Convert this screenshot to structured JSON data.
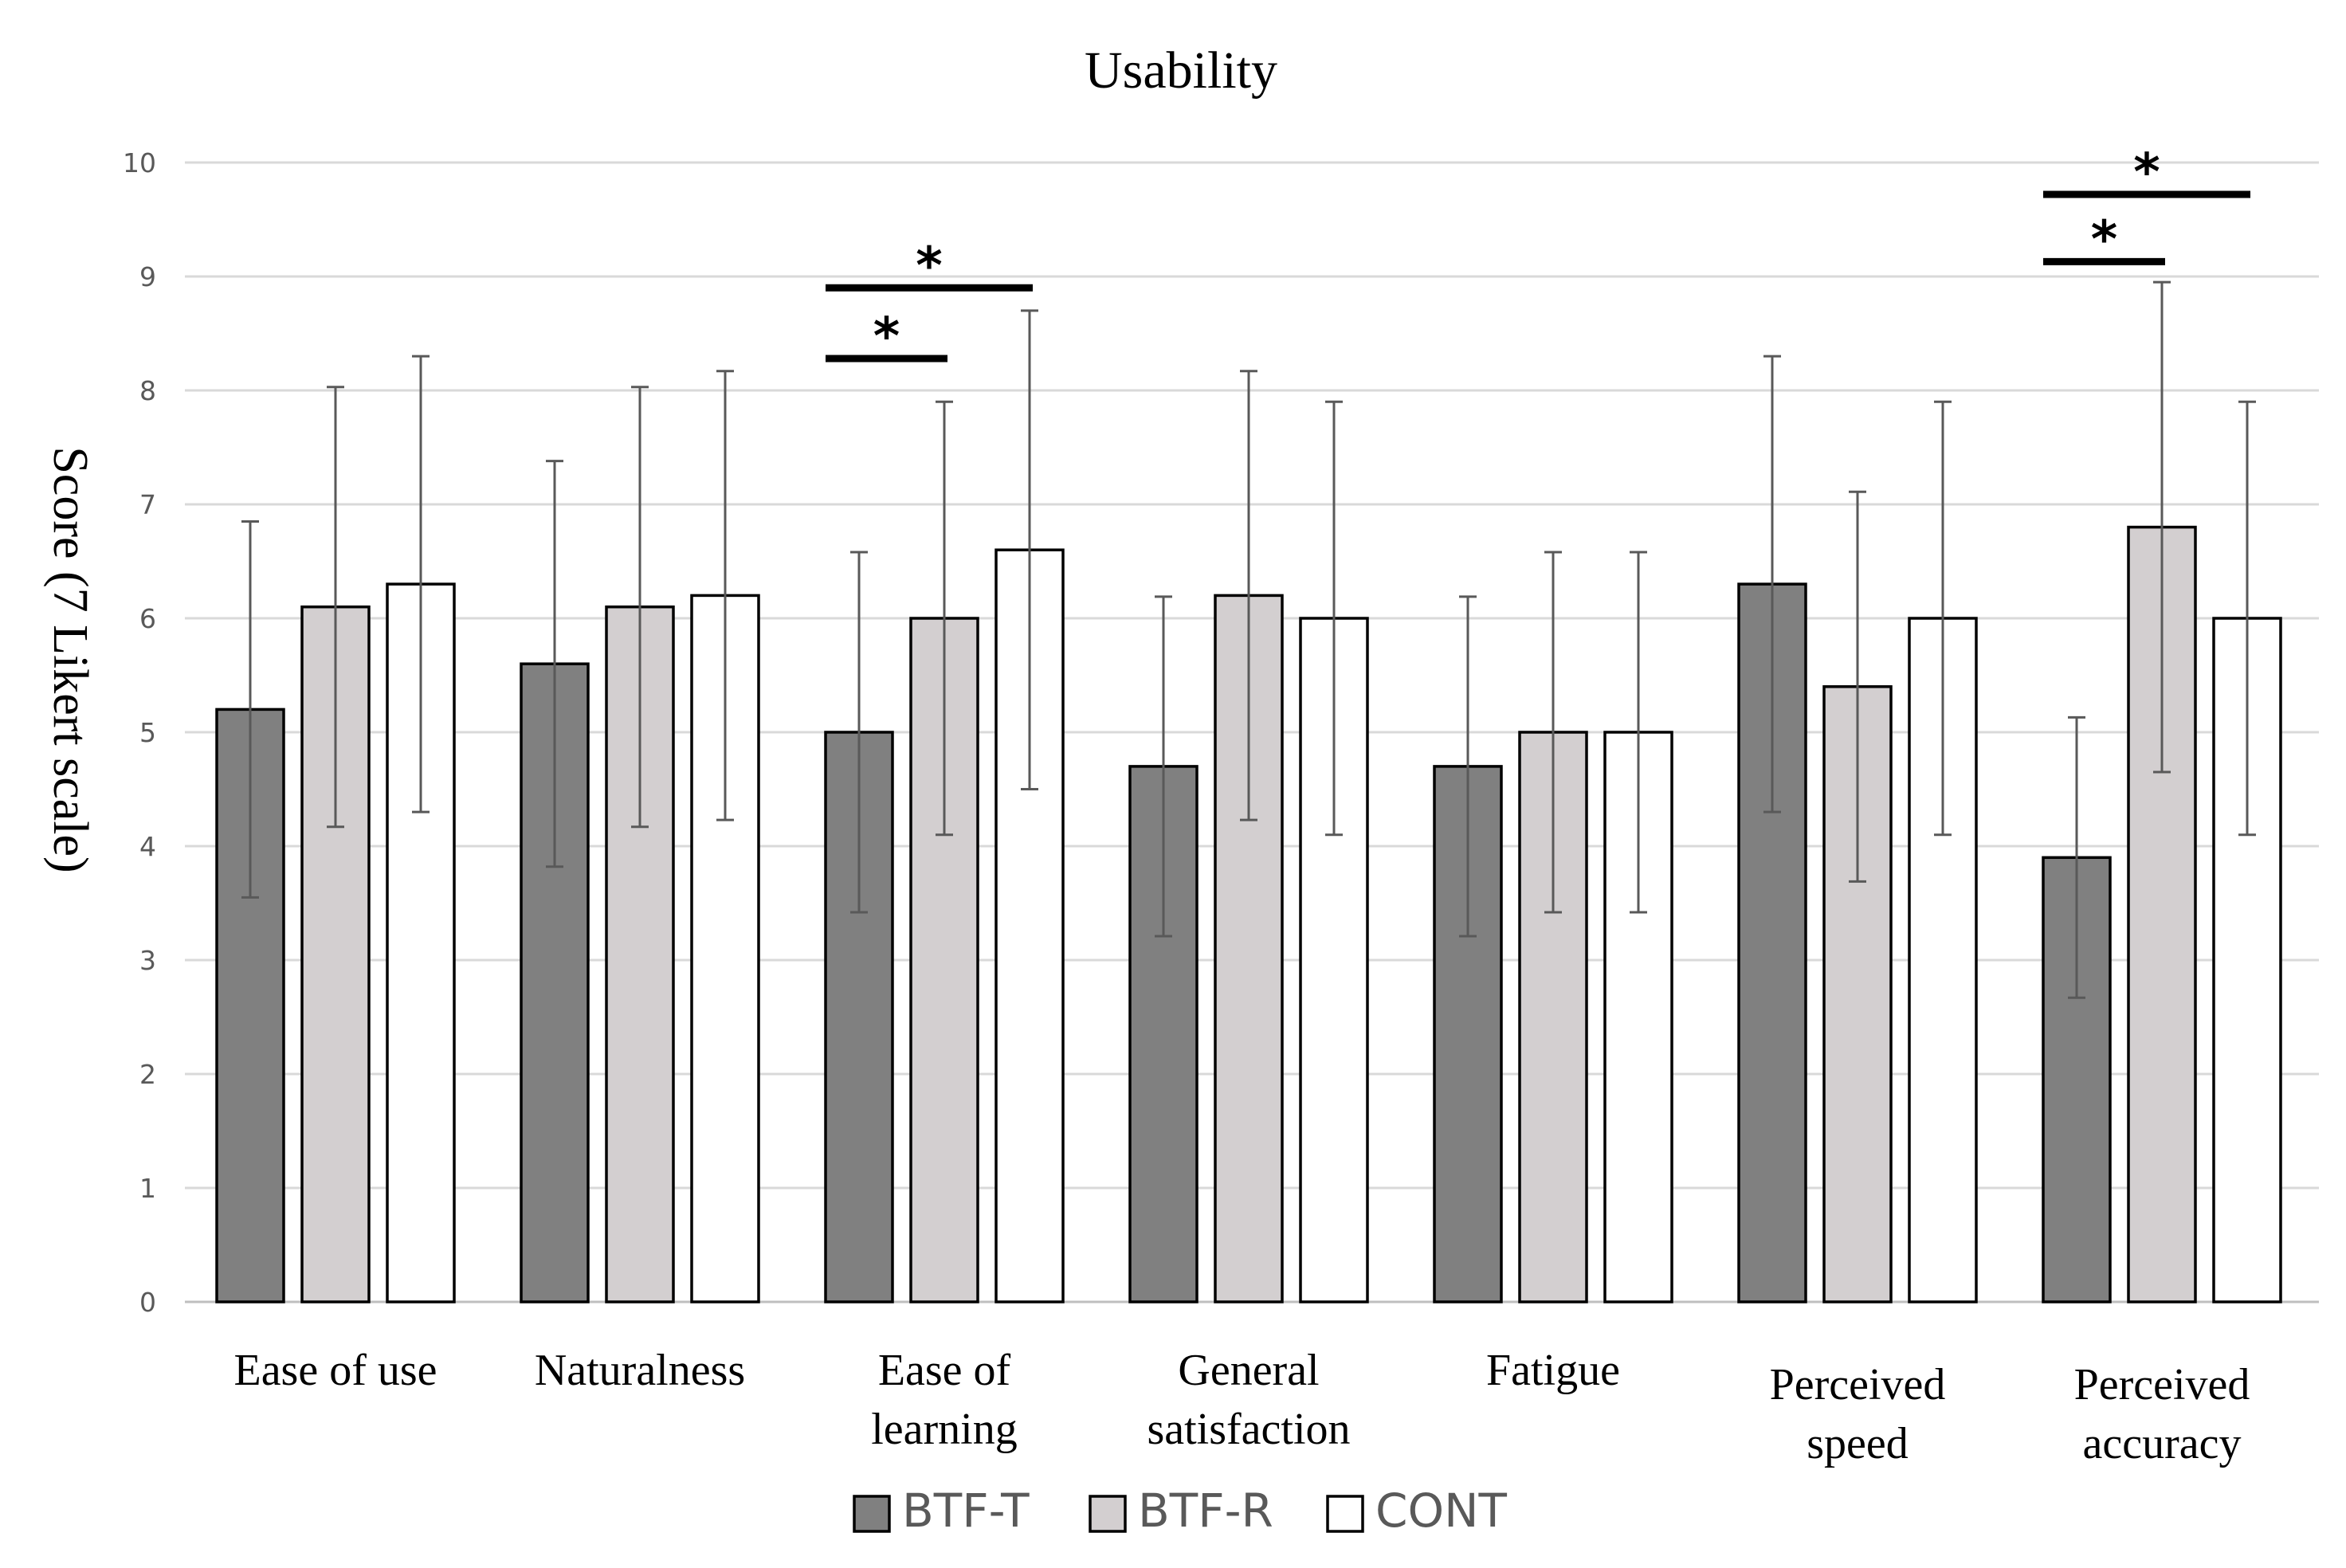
{
  "chart_data": {
    "type": "bar",
    "title": "Usability",
    "ylabel": "Score (7 Likert scale)",
    "xlabel": "",
    "ylim": [
      0,
      10
    ],
    "yticks": [
      "0",
      "1",
      "2",
      "3",
      "4",
      "5",
      "6",
      "7",
      "8",
      "9",
      "10"
    ],
    "grid": true,
    "legend_position": "bottom-center",
    "categories": [
      [
        "Ease of use"
      ],
      [
        "Naturalness"
      ],
      [
        "Ease of",
        "learning"
      ],
      [
        "General",
        "satisfaction"
      ],
      [
        "Fatigue"
      ],
      [
        "Perceived",
        "speed"
      ],
      [
        "Perceived",
        "accuracy"
      ]
    ],
    "series": [
      {
        "name": "BTF-T",
        "color": "#808080",
        "values": [
          5.2,
          5.6,
          5.0,
          4.7,
          4.7,
          6.3,
          3.9
        ],
        "errors": [
          1.65,
          1.78,
          1.58,
          1.49,
          1.49,
          2.0,
          1.23
        ]
      },
      {
        "name": "BTF-R",
        "color": "#d3cfd0",
        "values": [
          6.1,
          6.1,
          6.0,
          6.2,
          5.0,
          5.4,
          6.8
        ],
        "errors": [
          1.93,
          1.93,
          1.9,
          1.97,
          1.58,
          1.71,
          2.15
        ]
      },
      {
        "name": "CONT",
        "color": "#ffffff",
        "values": [
          6.3,
          6.2,
          6.6,
          6.0,
          5.0,
          6.0,
          6.0
        ],
        "errors": [
          2.0,
          1.97,
          2.1,
          1.9,
          1.58,
          1.9,
          1.9
        ]
      }
    ],
    "significance": [
      {
        "category": 2,
        "from": 0,
        "to": 1,
        "y": 8.28,
        "label": "*"
      },
      {
        "category": 2,
        "from": 0,
        "to": 2,
        "y": 8.9,
        "label": "*"
      },
      {
        "category": 6,
        "from": 0,
        "to": 1,
        "y": 9.13,
        "label": "*"
      },
      {
        "category": 6,
        "from": 0,
        "to": 2,
        "y": 9.72,
        "label": "*"
      }
    ]
  }
}
